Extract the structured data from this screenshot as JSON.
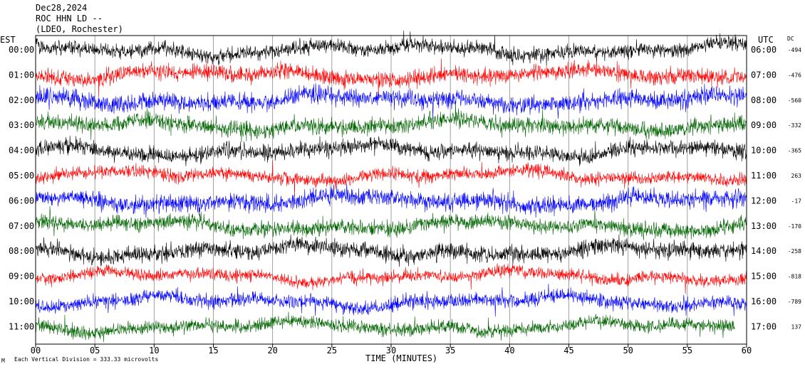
{
  "header": {
    "date": "Dec28,2024",
    "station": "ROC HHN LD --",
    "network": "(LDEO, Rochester)"
  },
  "left_zone_label": "EST",
  "right_zone_label": "UTC",
  "dc_header": "DC",
  "footer": {
    "marker": "M",
    "scale_note": "Each Vertical Division =  333.33 microvolts"
  },
  "chart_data": {
    "type": "line",
    "title": "",
    "xlabel": "TIME (MINUTES)",
    "ylabel": "",
    "xlim": [
      0,
      60
    ],
    "x_ticks": [
      "00",
      "05",
      "10",
      "15",
      "20",
      "25",
      "30",
      "35",
      "40",
      "45",
      "50",
      "55",
      "60"
    ],
    "vertical_grid": true,
    "trace_colors": [
      "#000000",
      "#ff0000",
      "#0000ff",
      "#006400"
    ],
    "rows": [
      {
        "local": "00:00",
        "utc": "06:00",
        "dc": "-494",
        "color": "#000000"
      },
      {
        "local": "01:00",
        "utc": "07:00",
        "dc": "-476",
        "color": "#ff0000"
      },
      {
        "local": "02:00",
        "utc": "08:00",
        "dc": "-560",
        "color": "#0000ff"
      },
      {
        "local": "03:00",
        "utc": "09:00",
        "dc": "-332",
        "color": "#006400"
      },
      {
        "local": "04:00",
        "utc": "10:00",
        "dc": "-365",
        "color": "#000000"
      },
      {
        "local": "05:00",
        "utc": "11:00",
        "dc": "263",
        "color": "#ff0000"
      },
      {
        "local": "06:00",
        "utc": "12:00",
        "dc": "-17",
        "color": "#0000ff"
      },
      {
        "local": "07:00",
        "utc": "13:00",
        "dc": "-170",
        "color": "#006400"
      },
      {
        "local": "08:00",
        "utc": "14:00",
        "dc": "-258",
        "color": "#000000"
      },
      {
        "local": "09:00",
        "utc": "15:00",
        "dc": "-818",
        "color": "#ff0000"
      },
      {
        "local": "10:00",
        "utc": "16:00",
        "dc": "-789",
        "color": "#0000ff"
      },
      {
        "local": "11:00",
        "utc": "17:00",
        "dc": "137",
        "color": "#006400"
      }
    ],
    "last_row_end_minute": 59
  }
}
